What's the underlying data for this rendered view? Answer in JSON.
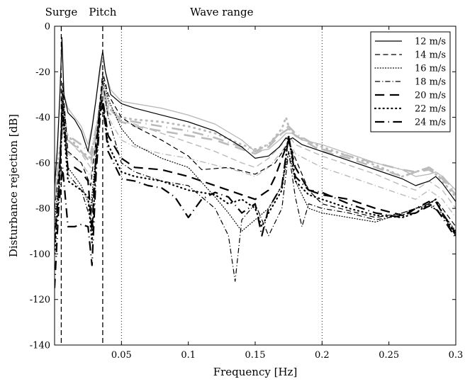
{
  "chart_data": {
    "type": "line",
    "xlabel": "Frequency [Hz]",
    "ylabel": "Disturbance rejection [dB]",
    "xlim": [
      0,
      0.3
    ],
    "ylim": [
      -140,
      0
    ],
    "x_ticks": [
      0.05,
      0.1,
      0.15,
      0.2,
      0.25,
      0.3
    ],
    "x_tick_labels": [
      "0.05",
      "0.1",
      "0.15",
      "0.2",
      "0.25",
      "0.3"
    ],
    "y_ticks": [
      0,
      -20,
      -40,
      -60,
      -80,
      -100,
      -120,
      -140
    ],
    "y_tick_labels": [
      "0",
      "-20",
      "-40",
      "-60",
      "-80",
      "-100",
      "-120",
      "-140"
    ],
    "grid": false,
    "legend_position": "top-right",
    "annotations": [
      {
        "text": "Surge",
        "x": 0.005
      },
      {
        "text": "Pitch",
        "x": 0.036
      },
      {
        "text": "Wave range",
        "x": 0.125
      }
    ],
    "vertical_lines": [
      {
        "x": 0.005,
        "style": "dashed"
      },
      {
        "x": 0.036,
        "style": "dashed"
      },
      {
        "x": 0.05,
        "style": "dotted"
      },
      {
        "x": 0.2,
        "style": "dotted"
      }
    ],
    "series": [
      {
        "name": "12 m/s",
        "style": "solid",
        "width": 1.2,
        "color": "#000000",
        "x": [
          0,
          0.002,
          0.004,
          0.0055,
          0.007,
          0.01,
          0.015,
          0.02,
          0.025,
          0.028,
          0.031,
          0.034,
          0.036,
          0.038,
          0.042,
          0.05,
          0.06,
          0.08,
          0.1,
          0.12,
          0.14,
          0.15,
          0.16,
          0.168,
          0.173,
          0.175,
          0.178,
          0.185,
          0.2,
          0.22,
          0.24,
          0.26,
          0.27,
          0.28,
          0.285,
          0.29,
          0.3
        ],
        "y": [
          -70,
          -55,
          -30,
          -5,
          -30,
          -38,
          -41,
          -46,
          -55,
          -45,
          -32,
          -18,
          -11,
          -20,
          -30,
          -34,
          -36,
          -39,
          -42,
          -46,
          -53,
          -58,
          -57,
          -53,
          -49,
          -50,
          -49,
          -52,
          -55,
          -59,
          -63,
          -67,
          -70,
          -68,
          -66,
          -69,
          -77
        ]
      },
      {
        "name": "14 m/s",
        "style": "dashed",
        "width": 1.2,
        "color": "#000000",
        "x": [
          0,
          0.004,
          0.006,
          0.01,
          0.02,
          0.027,
          0.032,
          0.036,
          0.04,
          0.05,
          0.06,
          0.08,
          0.1,
          0.11,
          0.13,
          0.15,
          0.165,
          0.175,
          0.18,
          0.19,
          0.2,
          0.22,
          0.24,
          0.26,
          0.27,
          0.28,
          0.285,
          0.29,
          0.3
        ],
        "y": [
          -80,
          -60,
          -25,
          -55,
          -60,
          -70,
          -45,
          -20,
          -30,
          -40,
          -44,
          -50,
          -57,
          -63,
          -62,
          -65,
          -60,
          -51,
          -58,
          -72,
          -78,
          -81,
          -84,
          -82,
          -80,
          -78,
          -76,
          -80,
          -88
        ]
      },
      {
        "name": "16 m/s",
        "style": "dotted",
        "width": 1.2,
        "color": "#000000",
        "x": [
          0,
          0.004,
          0.006,
          0.01,
          0.02,
          0.027,
          0.032,
          0.036,
          0.04,
          0.05,
          0.06,
          0.08,
          0.1,
          0.12,
          0.13,
          0.14,
          0.15,
          0.16,
          0.17,
          0.175,
          0.18,
          0.19,
          0.2,
          0.22,
          0.24,
          0.26,
          0.27,
          0.28,
          0.29,
          0.3
        ],
        "y": [
          -85,
          -65,
          -28,
          -62,
          -70,
          -80,
          -50,
          -22,
          -32,
          -45,
          -52,
          -58,
          -62,
          -75,
          -82,
          -90,
          -85,
          -80,
          -70,
          -55,
          -68,
          -80,
          -82,
          -84,
          -86,
          -82,
          -80,
          -79,
          -82,
          -90
        ]
      },
      {
        "name": "18 m/s",
        "style": "dashdot",
        "width": 1.2,
        "color": "#000000",
        "x": [
          0,
          0.004,
          0.006,
          0.01,
          0.02,
          0.027,
          0.032,
          0.036,
          0.04,
          0.05,
          0.06,
          0.08,
          0.1,
          0.11,
          0.12,
          0.13,
          0.135,
          0.14,
          0.15,
          0.16,
          0.17,
          0.175,
          0.18,
          0.185,
          0.19,
          0.2,
          0.22,
          0.24,
          0.26,
          0.27,
          0.28,
          0.29,
          0.3
        ],
        "y": [
          -90,
          -68,
          -30,
          -65,
          -72,
          -85,
          -52,
          -24,
          -40,
          -60,
          -64,
          -68,
          -70,
          -75,
          -80,
          -92,
          -112,
          -85,
          -78,
          -92,
          -80,
          -55,
          -75,
          -88,
          -78,
          -80,
          -82,
          -85,
          -83,
          -80,
          -78,
          -83,
          -92
        ]
      },
      {
        "name": "20 m/s",
        "style": "dashed",
        "width": 2.2,
        "color": "#000000",
        "x": [
          0,
          0.003,
          0.006,
          0.01,
          0.015,
          0.02,
          0.025,
          0.028,
          0.031,
          0.034,
          0.036,
          0.04,
          0.05,
          0.06,
          0.08,
          0.1,
          0.12,
          0.14,
          0.15,
          0.16,
          0.165,
          0.17,
          0.175,
          0.18,
          0.19,
          0.2,
          0.22,
          0.24,
          0.26,
          0.27,
          0.28,
          0.285,
          0.29,
          0.3
        ],
        "y": [
          -95,
          -72,
          -35,
          -63,
          -62,
          -64,
          -68,
          -90,
          -55,
          -35,
          -32,
          -48,
          -58,
          -62,
          -63,
          -66,
          -70,
          -74,
          -76,
          -72,
          -66,
          -58,
          -50,
          -62,
          -72,
          -74,
          -76,
          -80,
          -83,
          -82,
          -79,
          -77,
          -82,
          -91
        ]
      },
      {
        "name": "22 m/s",
        "style": "dotted",
        "width": 2.2,
        "color": "#000000",
        "x": [
          0,
          0.003,
          0.006,
          0.01,
          0.015,
          0.02,
          0.025,
          0.028,
          0.031,
          0.034,
          0.036,
          0.04,
          0.05,
          0.06,
          0.08,
          0.1,
          0.12,
          0.13,
          0.14,
          0.15,
          0.155,
          0.16,
          0.17,
          0.175,
          0.18,
          0.19,
          0.2,
          0.22,
          0.24,
          0.26,
          0.27,
          0.28,
          0.285,
          0.29,
          0.3
        ],
        "y": [
          -100,
          -75,
          -38,
          -68,
          -70,
          -72,
          -75,
          -95,
          -60,
          -38,
          -34,
          -52,
          -64,
          -66,
          -68,
          -72,
          -74,
          -78,
          -76,
          -80,
          -88,
          -82,
          -72,
          -48,
          -68,
          -74,
          -76,
          -80,
          -83,
          -84,
          -82,
          -78,
          -76,
          -82,
          -92
        ]
      },
      {
        "name": "24 m/s",
        "style": "dashdot",
        "width": 2.2,
        "color": "#000000",
        "x": [
          0,
          0.003,
          0.006,
          0.01,
          0.015,
          0.02,
          0.025,
          0.028,
          0.031,
          0.034,
          0.036,
          0.04,
          0.05,
          0.06,
          0.07,
          0.08,
          0.09,
          0.1,
          0.11,
          0.12,
          0.13,
          0.14,
          0.15,
          0.155,
          0.16,
          0.17,
          0.175,
          0.18,
          0.19,
          0.2,
          0.22,
          0.24,
          0.26,
          0.27,
          0.28,
          0.285,
          0.29,
          0.3
        ],
        "y": [
          -115,
          -80,
          -62,
          -88,
          -88,
          -87,
          -88,
          -105,
          -65,
          -40,
          -34,
          -55,
          -67,
          -68,
          -70,
          -71,
          -75,
          -84,
          -76,
          -73,
          -75,
          -82,
          -78,
          -92,
          -80,
          -70,
          -48,
          -66,
          -72,
          -73,
          -78,
          -82,
          -84,
          -80,
          -77,
          -80,
          -84,
          -93
        ]
      },
      {
        "name": "",
        "style": "solid",
        "width": 1.4,
        "color": "#bbbbbb",
        "x": [
          0,
          0.002,
          0.004,
          0.0055,
          0.007,
          0.01,
          0.015,
          0.02,
          0.025,
          0.028,
          0.031,
          0.034,
          0.036,
          0.038,
          0.042,
          0.05,
          0.06,
          0.08,
          0.1,
          0.12,
          0.14,
          0.15,
          0.16,
          0.168,
          0.173,
          0.175,
          0.178,
          0.185,
          0.2,
          0.22,
          0.24,
          0.26,
          0.27,
          0.28,
          0.285,
          0.29,
          0.3
        ],
        "y": [
          -68,
          -52,
          -30,
          -8,
          -30,
          -36,
          -40,
          -44,
          -52,
          -44,
          -32,
          -20,
          -14,
          -20,
          -28,
          -33,
          -34,
          -36,
          -39,
          -43,
          -50,
          -55,
          -54,
          -50,
          -47,
          -47,
          -47,
          -50,
          -52,
          -56,
          -60,
          -63,
          -66,
          -65,
          -64,
          -66,
          -72
        ]
      },
      {
        "name": "",
        "style": "dashed",
        "width": 1.4,
        "color": "#bbbbbb",
        "x": [
          0,
          0.004,
          0.006,
          0.01,
          0.02,
          0.027,
          0.032,
          0.036,
          0.04,
          0.05,
          0.06,
          0.08,
          0.1,
          0.12,
          0.14,
          0.15,
          0.16,
          0.17,
          0.175,
          0.18,
          0.2,
          0.22,
          0.24,
          0.26,
          0.27,
          0.28,
          0.29,
          0.3
        ],
        "y": [
          -75,
          -58,
          -30,
          -50,
          -56,
          -62,
          -42,
          -24,
          -34,
          -42,
          -43,
          -47,
          -51,
          -55,
          -60,
          -62,
          -58,
          -52,
          -48,
          -52,
          -57,
          -61,
          -65,
          -70,
          -72,
          -68,
          -72,
          -80
        ]
      },
      {
        "name": "",
        "style": "dotted",
        "width": 3.0,
        "color": "#bbbbbb",
        "x": [
          0,
          0.004,
          0.006,
          0.01,
          0.02,
          0.027,
          0.032,
          0.036,
          0.04,
          0.05,
          0.06,
          0.08,
          0.1,
          0.12,
          0.14,
          0.15,
          0.16,
          0.17,
          0.173,
          0.176,
          0.18,
          0.2,
          0.22,
          0.24,
          0.26,
          0.27,
          0.28,
          0.29,
          0.3
        ],
        "y": [
          -70,
          -54,
          -45,
          -48,
          -55,
          -58,
          -42,
          -26,
          -36,
          -40,
          -41,
          -42,
          -44,
          -47,
          -52,
          -54,
          -52,
          -45,
          -40,
          -46,
          -48,
          -53,
          -57,
          -61,
          -66,
          -64,
          -62,
          -68,
          -75
        ]
      },
      {
        "name": "",
        "style": "dashdot",
        "width": 1.4,
        "color": "#bbbbbb",
        "x": [
          0,
          0.004,
          0.006,
          0.01,
          0.02,
          0.027,
          0.032,
          0.036,
          0.04,
          0.05,
          0.06,
          0.08,
          0.1,
          0.12,
          0.14,
          0.15,
          0.16,
          0.17,
          0.175,
          0.18,
          0.2,
          0.22,
          0.24,
          0.26,
          0.27,
          0.28,
          0.29,
          0.3
        ],
        "y": [
          -80,
          -62,
          -34,
          -56,
          -60,
          -66,
          -46,
          -28,
          -40,
          -50,
          -53,
          -56,
          -58,
          -61,
          -64,
          -66,
          -62,
          -55,
          -50,
          -56,
          -62,
          -66,
          -70,
          -74,
          -76,
          -72,
          -76,
          -84
        ]
      },
      {
        "name": "",
        "style": "dashed",
        "width": 2.6,
        "color": "#bbbbbb",
        "x": [
          0,
          0.004,
          0.006,
          0.01,
          0.02,
          0.027,
          0.032,
          0.036,
          0.04,
          0.05,
          0.06,
          0.08,
          0.1,
          0.12,
          0.14,
          0.15,
          0.16,
          0.17,
          0.175,
          0.18,
          0.2,
          0.22,
          0.24,
          0.26,
          0.27,
          0.28,
          0.29,
          0.3
        ],
        "y": [
          -72,
          -56,
          -46,
          -50,
          -55,
          -60,
          -44,
          -28,
          -38,
          -42,
          -44,
          -46,
          -48,
          -50,
          -54,
          -56,
          -53,
          -47,
          -45,
          -48,
          -55,
          -58,
          -62,
          -66,
          -64,
          -63,
          -67,
          -74
        ]
      },
      {
        "name": "",
        "style": "dashdot",
        "width": 2.6,
        "color": "#bbbbbb",
        "x": [
          0,
          0.004,
          0.006,
          0.01,
          0.02,
          0.027,
          0.032,
          0.036,
          0.04,
          0.05,
          0.06,
          0.08,
          0.1,
          0.12,
          0.14,
          0.15,
          0.16,
          0.17,
          0.175,
          0.18,
          0.2,
          0.22,
          0.24,
          0.26,
          0.27,
          0.28,
          0.29,
          0.3
        ],
        "y": [
          -74,
          -58,
          -44,
          -48,
          -52,
          -56,
          -42,
          -25,
          -36,
          -41,
          -42,
          -44,
          -46,
          -49,
          -53,
          -55,
          -52,
          -46,
          -44,
          -47,
          -54,
          -57,
          -60,
          -63,
          -64,
          -62,
          -66,
          -73
        ]
      }
    ]
  }
}
